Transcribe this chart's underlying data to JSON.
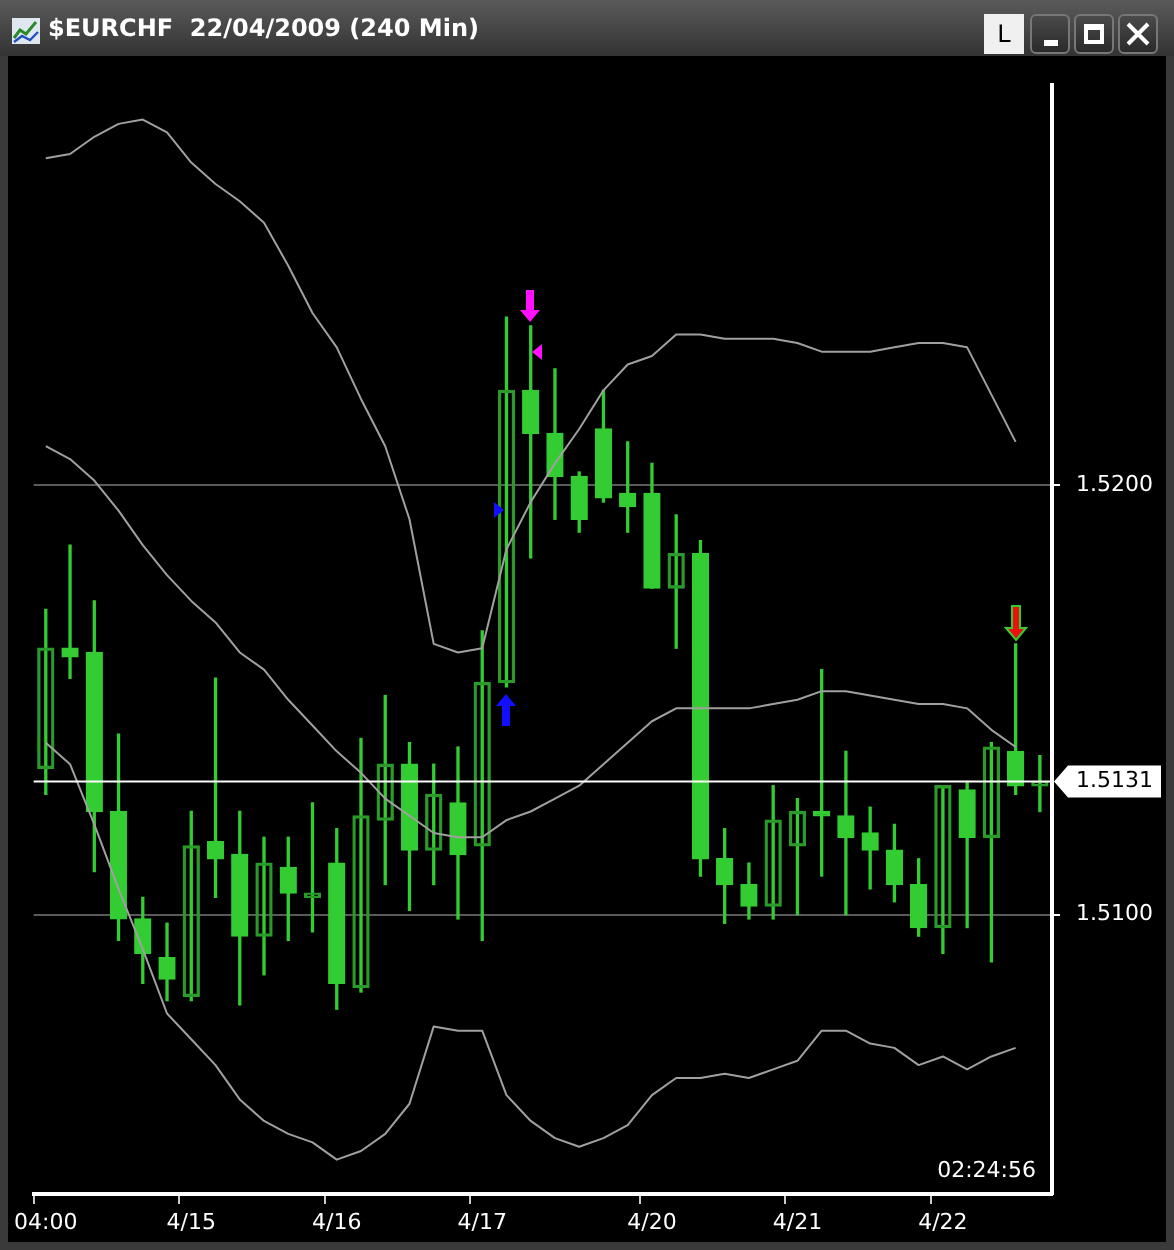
{
  "chart_data": {
    "type": "candlestick",
    "title": "$EURCHF  22/04/2009 (240 Min)",
    "color": "#33cc33",
    "colors": [
      "#2a9a2a",
      "#33cc33",
      "#33cc33",
      "#33cc33",
      "#33cc33",
      "#33cc33",
      "#2a9a2a",
      "#33cc33",
      "#33cc33",
      "#2a9a2a",
      "#33cc33",
      "#2a9a2a",
      "#33cc33",
      "#2a9a2a",
      "#2a9a2a",
      "#33cc33",
      "#2a9a2a",
      "#33cc33",
      "#2a9a2a",
      "#2a9a2a",
      "#33cc33",
      "#33cc33",
      "#33cc33",
      "#33cc33",
      "#33cc33",
      "#33cc33",
      "#2a9a2a",
      "#33cc33",
      "#33cc33",
      "#33cc33",
      "#2a9a2a",
      "#2a9a2a",
      "#33cc33",
      "#33cc33",
      "#33cc33",
      "#33cc33",
      "#33cc33",
      "#2a9a2a",
      "#33cc33",
      "#2a9a2a",
      "#33cc33",
      "#2a9a2a"
    ],
    "categories": [
      "04:00",
      null,
      null,
      null,
      null,
      null,
      "4/15",
      null,
      null,
      null,
      null,
      null,
      "4/16",
      null,
      null,
      null,
      null,
      null,
      "4/17",
      null,
      null,
      null,
      null,
      null,
      null,
      "4/20",
      null,
      null,
      null,
      null,
      null,
      "4/21",
      null,
      null,
      null,
      null,
      null,
      "4/22",
      null,
      null,
      null,
      null
    ],
    "ohlc": [
      [
        1.5134,
        1.5171,
        1.5128,
        1.5162
      ],
      [
        1.5162,
        1.5186,
        1.5155,
        1.516
      ],
      [
        1.5161,
        1.5173,
        1.511,
        1.5124
      ],
      [
        1.5124,
        1.5142,
        1.5094,
        1.5099
      ],
      [
        1.5099,
        1.5104,
        1.5084,
        1.5091
      ],
      [
        1.509,
        1.5098,
        1.508,
        1.5085
      ],
      [
        1.5081,
        1.5124,
        1.508,
        1.5116
      ],
      [
        1.5117,
        1.5155,
        1.5104,
        1.5113
      ],
      [
        1.5114,
        1.5124,
        1.5079,
        1.5095
      ],
      [
        1.5095,
        1.5118,
        1.5086,
        1.5112
      ],
      [
        1.5111,
        1.5118,
        1.5094,
        1.5105
      ],
      [
        1.5104,
        1.5126,
        1.5096,
        1.5105
      ],
      [
        1.5112,
        1.512,
        1.5078,
        1.5084
      ],
      [
        1.5083,
        1.5141,
        1.5082,
        1.5123
      ],
      [
        1.5122,
        1.5151,
        1.5107,
        1.5135
      ],
      [
        1.5135,
        1.514,
        1.5101,
        1.5115
      ],
      [
        1.5115,
        1.5135,
        1.5107,
        1.5128
      ],
      [
        1.5126,
        1.5139,
        1.5099,
        1.5114
      ],
      [
        1.5116,
        1.5166,
        1.5094,
        1.5154
      ],
      [
        1.5154,
        1.5239,
        1.5153,
        1.5222
      ],
      [
        1.5222,
        1.5237,
        1.5183,
        1.5212
      ],
      [
        1.5212,
        1.5227,
        1.5192,
        1.5202
      ],
      [
        1.5202,
        1.5203,
        1.5189,
        1.5192
      ],
      [
        1.5213,
        1.5222,
        1.5196,
        1.5197
      ],
      [
        1.5198,
        1.521,
        1.5189,
        1.5195
      ],
      [
        1.5198,
        1.5205,
        1.5176,
        1.5176
      ],
      [
        1.5176,
        1.5193,
        1.5162,
        1.5184
      ],
      [
        1.5184,
        1.5187,
        1.5109,
        1.5113
      ],
      [
        1.5113,
        1.512,
        1.5098,
        1.5107
      ],
      [
        1.5107,
        1.5112,
        1.5099,
        1.5102
      ],
      [
        1.5102,
        1.513,
        1.5099,
        1.5122
      ],
      [
        1.5116,
        1.5127,
        1.51,
        1.5124
      ],
      [
        1.5124,
        1.5157,
        1.5109,
        1.5123
      ],
      [
        1.5123,
        1.5138,
        1.51,
        1.5118
      ],
      [
        1.5119,
        1.5125,
        1.5106,
        1.5115
      ],
      [
        1.5115,
        1.5121,
        1.5103,
        1.5107
      ],
      [
        1.5107,
        1.5113,
        1.5095,
        1.5097
      ],
      [
        1.5097,
        1.513,
        1.5091,
        1.513
      ],
      [
        1.5129,
        1.5131,
        1.5097,
        1.5118
      ],
      [
        1.5118,
        1.514,
        1.5089,
        1.5139
      ],
      [
        1.5138,
        1.5163,
        1.5128,
        1.513
      ],
      [
        1.513,
        1.5137,
        1.5124,
        1.5131
      ]
    ],
    "series": [
      {
        "type": "line",
        "color": "#a0a0a0",
        "values": [
          1.5276,
          1.5277,
          1.5281,
          1.5284,
          1.5285,
          1.5282,
          1.5275,
          1.527,
          1.5266,
          1.5261,
          1.5251,
          1.524,
          1.5232,
          1.522,
          1.5209,
          1.5192,
          1.5163,
          1.5161,
          1.5162,
          1.5185,
          1.5196,
          1.5205,
          1.5213,
          1.5222,
          1.5228,
          1.523,
          1.5235,
          1.5235,
          1.5234,
          1.5234,
          1.5234,
          1.5233,
          1.5231,
          1.5231,
          1.5231,
          1.5232,
          1.5233,
          1.5233,
          1.5232,
          1.5221,
          1.521,
          null
        ]
      },
      {
        "type": "line",
        "color": "#a0a0a0",
        "values": [
          1.5209,
          1.5206,
          1.5201,
          1.5194,
          1.5186,
          1.5179,
          1.5173,
          1.5168,
          1.5161,
          1.5157,
          1.515,
          1.5144,
          1.5138,
          1.5133,
          1.5127,
          1.5123,
          1.5119,
          1.5118,
          1.5118,
          1.5122,
          1.5124,
          1.5127,
          1.513,
          1.5135,
          1.514,
          1.5145,
          1.5148,
          1.5148,
          1.5148,
          1.5148,
          1.5149,
          1.515,
          1.5152,
          1.5152,
          1.5151,
          1.515,
          1.5149,
          1.5149,
          1.5148,
          1.5143,
          1.5139,
          null
        ]
      },
      {
        "type": "line",
        "color": "#a0a0a0",
        "values": [
          1.514,
          1.5135,
          1.5121,
          1.5106,
          1.5092,
          1.5077,
          1.5071,
          1.5065,
          1.5057,
          1.5052,
          1.5049,
          1.5047,
          1.5043,
          1.5045,
          1.5049,
          1.5056,
          1.5074,
          1.5073,
          1.5073,
          1.5058,
          1.5052,
          1.5048,
          1.5046,
          1.5048,
          1.5051,
          1.5058,
          1.5062,
          1.5062,
          1.5063,
          1.5062,
          1.5064,
          1.5066,
          1.5073,
          1.5073,
          1.507,
          1.5069,
          1.5065,
          1.5067,
          1.5064,
          1.5067,
          1.5069,
          null
        ]
      }
    ],
    "ylim": [
      1.5035,
      1.5293
    ],
    "yticks": [
      {
        "value": 1.51,
        "label": "1.5100"
      },
      {
        "value": 1.52,
        "label": "1.5200"
      }
    ],
    "grid": "y",
    "ref_lines": [
      {
        "axis": "y",
        "value": 1.5131,
        "label": "1.5131",
        "color": "#ffffff"
      }
    ],
    "annotations": [
      "02:24:56",
      "L"
    ],
    "legend": false
  }
}
